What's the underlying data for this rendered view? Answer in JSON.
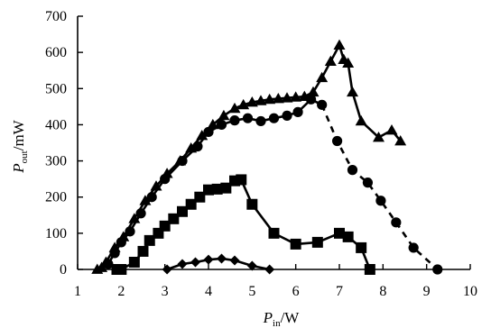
{
  "chart_data": {
    "type": "line",
    "xlabel": {
      "main": "P",
      "sub": "in",
      "unit": "/W"
    },
    "ylabel": {
      "main": "P",
      "sub": "out",
      "unit": "/mW"
    },
    "xlim": [
      1,
      10
    ],
    "ylim": [
      0,
      700
    ],
    "x_ticks": [
      1,
      2,
      3,
      4,
      5,
      6,
      7,
      8,
      9,
      10
    ],
    "y_ticks": [
      0,
      100,
      200,
      300,
      400,
      500,
      600,
      700
    ],
    "grid": false,
    "legend": "none",
    "series": [
      {
        "marker": "triangle",
        "line_style": "solid",
        "color": "#000000",
        "points": [
          [
            1.45,
            0
          ],
          [
            1.55,
            5
          ],
          [
            1.65,
            20
          ],
          [
            1.85,
            60
          ],
          [
            2.05,
            90
          ],
          [
            2.3,
            140
          ],
          [
            2.55,
            190
          ],
          [
            2.8,
            230
          ],
          [
            3.05,
            265
          ],
          [
            3.35,
            300
          ],
          [
            3.6,
            335
          ],
          [
            3.85,
            370
          ],
          [
            4.1,
            400
          ],
          [
            4.35,
            425
          ],
          [
            4.6,
            445
          ],
          [
            4.8,
            455
          ],
          [
            5.0,
            462
          ],
          [
            5.2,
            466
          ],
          [
            5.4,
            470
          ],
          [
            5.6,
            472
          ],
          [
            5.8,
            474
          ],
          [
            6.0,
            476
          ],
          [
            6.2,
            478
          ],
          [
            6.4,
            490
          ],
          [
            6.6,
            530
          ],
          [
            6.8,
            575
          ],
          [
            7.0,
            620
          ],
          [
            7.1,
            580
          ],
          [
            7.2,
            570
          ],
          [
            7.3,
            490
          ],
          [
            7.5,
            410
          ],
          [
            7.9,
            365
          ],
          [
            8.2,
            385
          ],
          [
            8.4,
            355
          ]
        ]
      },
      {
        "marker": "circle",
        "line_style": "solid-then-dashed",
        "dash_after": 6.6,
        "color": "#000000",
        "points": [
          [
            1.7,
            15
          ],
          [
            1.85,
            45
          ],
          [
            2.0,
            75
          ],
          [
            2.2,
            105
          ],
          [
            2.45,
            155
          ],
          [
            2.7,
            200
          ],
          [
            3.0,
            250
          ],
          [
            3.4,
            300
          ],
          [
            3.75,
            340
          ],
          [
            4.0,
            380
          ],
          [
            4.3,
            400
          ],
          [
            4.6,
            412
          ],
          [
            4.9,
            418
          ],
          [
            5.2,
            410
          ],
          [
            5.5,
            418
          ],
          [
            5.8,
            425
          ],
          [
            6.05,
            435
          ],
          [
            6.35,
            470
          ],
          [
            6.6,
            455
          ],
          [
            6.95,
            355
          ],
          [
            7.3,
            275
          ],
          [
            7.65,
            240
          ],
          [
            7.95,
            190
          ],
          [
            8.3,
            130
          ],
          [
            8.7,
            60
          ],
          [
            9.25,
            0
          ]
        ]
      },
      {
        "marker": "square",
        "line_style": "solid",
        "color": "#000000",
        "points": [
          [
            1.9,
            0
          ],
          [
            2.0,
            0
          ],
          [
            2.3,
            20
          ],
          [
            2.5,
            50
          ],
          [
            2.65,
            80
          ],
          [
            2.85,
            100
          ],
          [
            3.0,
            120
          ],
          [
            3.2,
            140
          ],
          [
            3.4,
            160
          ],
          [
            3.6,
            180
          ],
          [
            3.8,
            200
          ],
          [
            4.0,
            220
          ],
          [
            4.2,
            222
          ],
          [
            4.4,
            225
          ],
          [
            4.6,
            245
          ],
          [
            4.75,
            248
          ],
          [
            5.0,
            180
          ],
          [
            5.5,
            100
          ],
          [
            6.0,
            70
          ],
          [
            6.5,
            75
          ],
          [
            7.0,
            100
          ],
          [
            7.2,
            90
          ],
          [
            7.5,
            60
          ],
          [
            7.7,
            0
          ]
        ]
      },
      {
        "marker": "diamond",
        "line_style": "solid",
        "color": "#000000",
        "points": [
          [
            3.05,
            0
          ],
          [
            3.4,
            15
          ],
          [
            3.7,
            20
          ],
          [
            4.0,
            27
          ],
          [
            4.3,
            30
          ],
          [
            4.6,
            25
          ],
          [
            5.0,
            10
          ],
          [
            5.4,
            0
          ]
        ]
      }
    ]
  }
}
